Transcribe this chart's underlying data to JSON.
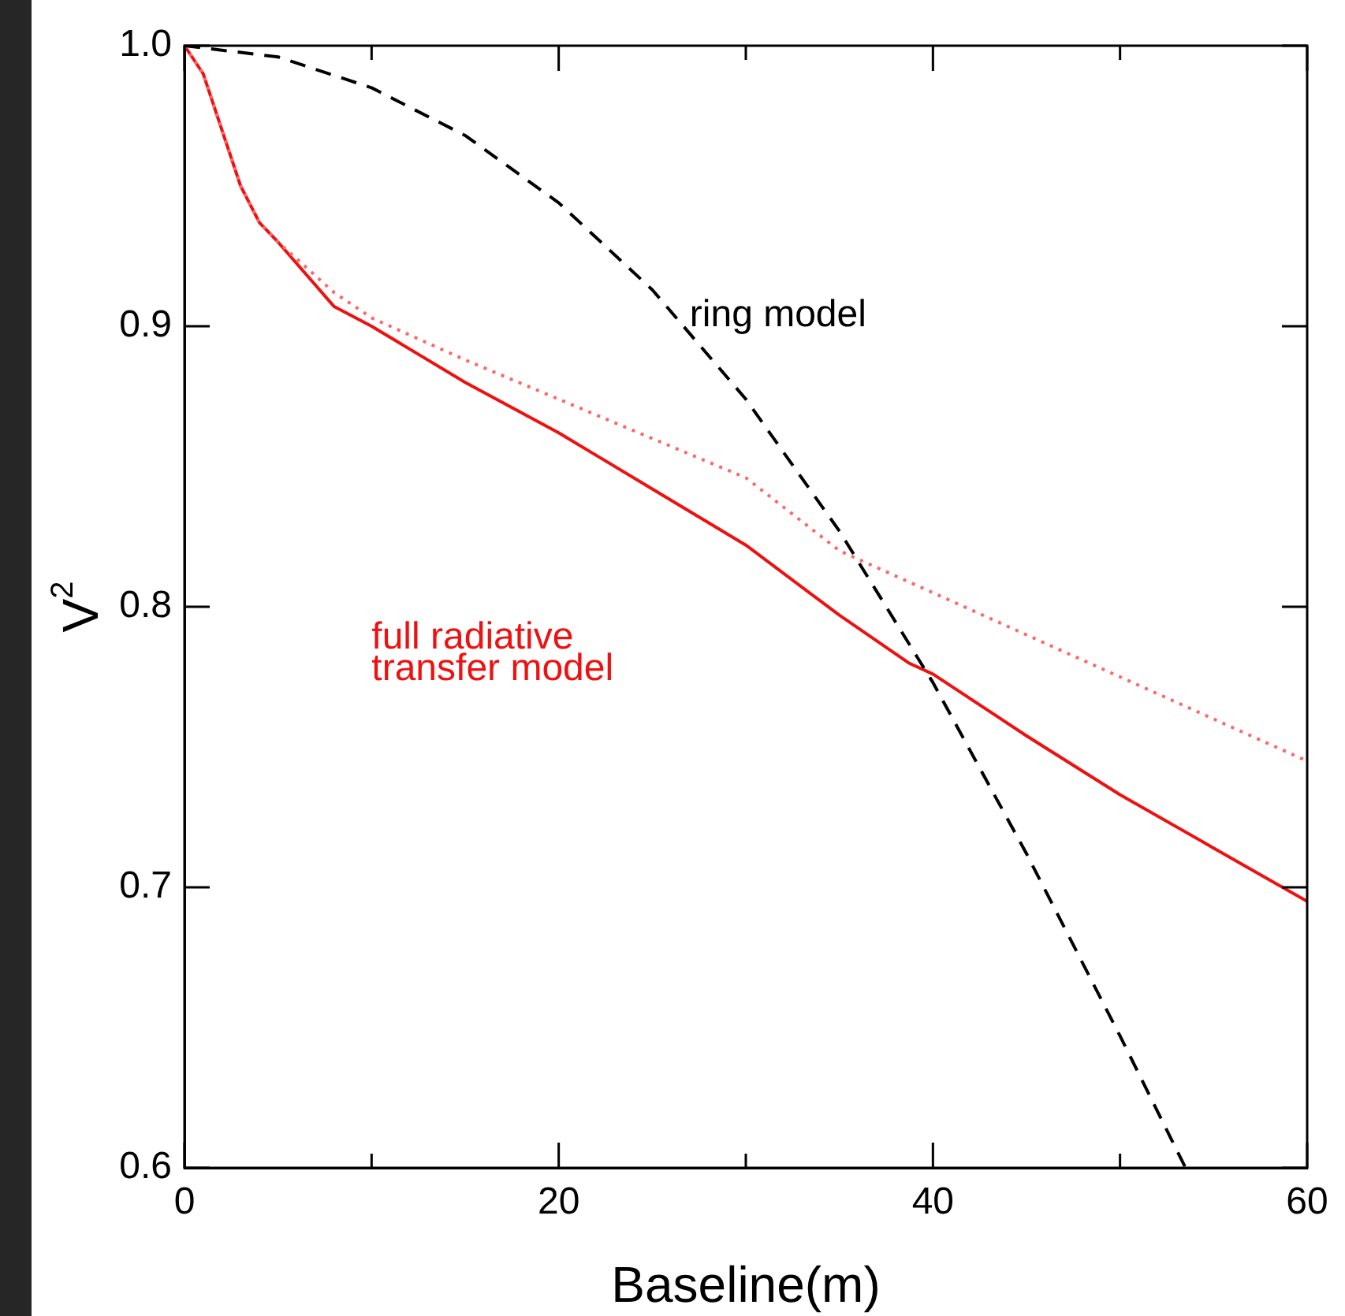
{
  "chart_data": {
    "type": "line",
    "xlabel": "Baseline(m)",
    "ylabel": "V$^{2}$",
    "xlim": [
      0,
      60
    ],
    "ylim": [
      0.6,
      1.0
    ],
    "xticks": [
      0,
      {
        "value": 10,
        "label": null
      },
      20,
      {
        "value": 30,
        "label": null
      },
      40,
      {
        "value": 50,
        "label": null
      },
      60
    ],
    "yticks": [
      0.6,
      0.7,
      0.8,
      0.9,
      {
        "value": 1,
        "label": "1.0"
      }
    ],
    "grid": false,
    "legend": false,
    "marker": "none",
    "series": [
      {
        "name": "ring model",
        "color": "#000000",
        "line_style": "dashed",
        "x": [
          0,
          5,
          10,
          15,
          20,
          25,
          30,
          35,
          40,
          45,
          50,
          53.5
        ],
        "values": [
          1.0,
          0.996,
          0.985,
          0.968,
          0.944,
          0.913,
          0.874,
          0.827,
          0.773,
          0.712,
          0.647,
          0.6
        ]
      },
      {
        "color": "#ff6666",
        "line_style": "dotted",
        "x": [
          0,
          1,
          2,
          3,
          4,
          5,
          8,
          10,
          15,
          20,
          25,
          30,
          35,
          40,
          45,
          50,
          55,
          60
        ],
        "values": [
          1.0,
          0.99,
          0.97,
          0.95,
          0.937,
          0.93,
          0.912,
          0.903,
          0.888,
          0.874,
          0.86,
          0.846,
          0.82,
          0.805,
          0.79,
          0.775,
          0.76,
          0.745
        ]
      },
      {
        "name": "full radiative transfer model",
        "color": "#ee1111",
        "line_style": "solid",
        "x": [
          0,
          1,
          2,
          3,
          4,
          5,
          8,
          10,
          15,
          20,
          25,
          30,
          35,
          38.7,
          40,
          45,
          50,
          55,
          60
        ],
        "values": [
          1.0,
          0.99,
          0.97,
          0.95,
          0.937,
          0.93,
          0.907,
          0.9,
          0.88,
          0.862,
          0.842,
          0.822,
          0.797,
          0.78,
          0.776,
          0.754,
          0.733,
          0.714,
          0.695
        ]
      }
    ]
  }
}
